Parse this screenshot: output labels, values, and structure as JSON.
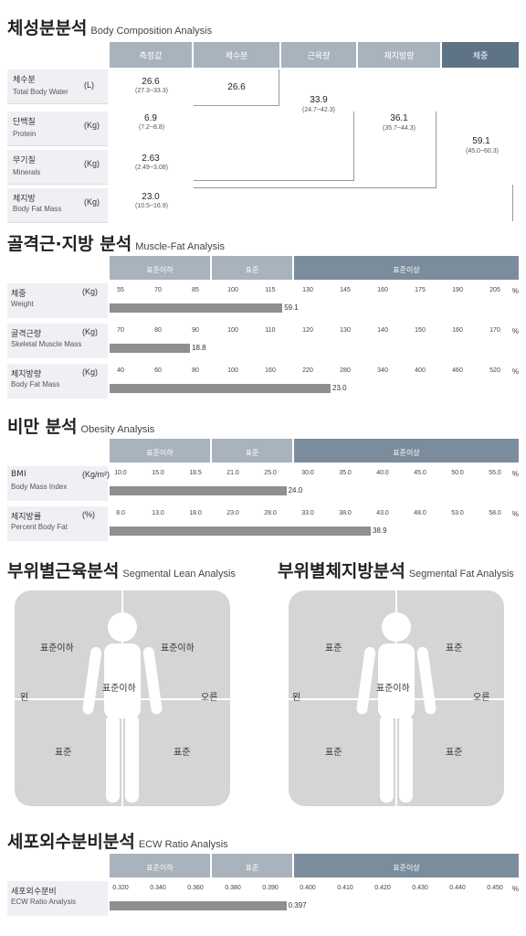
{
  "composition": {
    "title_kr": "체성분분석",
    "title_en": "Body Composition Analysis",
    "headers": [
      "측정값",
      "체수분",
      "근육량",
      "제지방량",
      "체중"
    ],
    "rows": [
      {
        "kr": "체수분",
        "en": "Total Body Water",
        "unit": "(L)",
        "value": "26.6",
        "range": "(27.3~33.3)"
      },
      {
        "kr": "단백질",
        "en": "Protein",
        "unit": "(Kg)",
        "value": "6.9",
        "range": "(7.2~8.8)"
      },
      {
        "kr": "무기질",
        "en": "Minerals",
        "unit": "(Kg)",
        "value": "2.63",
        "range": "(2.49~3.08)"
      },
      {
        "kr": "체지방",
        "en": "Body Fat Mass",
        "unit": "(Kg)",
        "value": "23.0",
        "range": "(10.5~16.9)"
      }
    ],
    "water_col": {
      "value": "26.6"
    },
    "muscle_col": {
      "value": "33.9",
      "range": "(24.7~42.3)"
    },
    "ffm_col": {
      "value": "36.1",
      "range": "(35.7~44.3)"
    },
    "weight_col": {
      "value": "59.1",
      "range": "(45.0~60.3)"
    }
  },
  "muscle_fat": {
    "title_kr": "골격근·지방 분석",
    "title_en": "Muscle-Fat Analysis",
    "bands": [
      "표준이하",
      "표준",
      "표준이상"
    ],
    "rows": [
      {
        "kr": "체중",
        "en": "Weight",
        "unit": "(Kg)",
        "ticks": [
          "55",
          "70",
          "85",
          "100",
          "115",
          "130",
          "145",
          "160",
          "175",
          "190",
          "205"
        ],
        "value": "59.1",
        "fraction": 0.43
      },
      {
        "kr": "골격근량",
        "en": "Skeletal Muscle Mass",
        "unit": "(Kg)",
        "ticks": [
          "70",
          "80",
          "90",
          "100",
          "110",
          "120",
          "130",
          "140",
          "150",
          "160",
          "170"
        ],
        "value": "18.8",
        "fraction": 0.2
      },
      {
        "kr": "체지방량",
        "en": "Body Fat Mass",
        "unit": "(Kg)",
        "ticks": [
          "40",
          "60",
          "80",
          "100",
          "160",
          "220",
          "280",
          "340",
          "400",
          "460",
          "520"
        ],
        "value": "23.0",
        "fraction": 0.55
      }
    ]
  },
  "obesity": {
    "title_kr": "비만 분석",
    "title_en": "Obesity Analysis",
    "bands": [
      "표준이하",
      "표준",
      "표준이상"
    ],
    "rows": [
      {
        "kr": "BMI",
        "en": "Body Mass Index",
        "unit": "(Kg/m²)",
        "ticks": [
          "10.0",
          "15.0",
          "18.5",
          "21.0",
          "25.0",
          "30.0",
          "35.0",
          "40.0",
          "45.0",
          "50.0",
          "55.0"
        ],
        "value": "24.0",
        "fraction": 0.44
      },
      {
        "kr": "체지방률",
        "en": "Percent Body Fat",
        "unit": "(%)",
        "ticks": [
          "8.0",
          "13.0",
          "18.0",
          "23.0",
          "28.0",
          "33.0",
          "38.0",
          "43.0",
          "48.0",
          "53.0",
          "58.0"
        ],
        "value": "38.9",
        "fraction": 0.65
      }
    ]
  },
  "segmental_lean": {
    "title_kr": "부위별근육분석",
    "title_en": "Segmental Lean Analysis",
    "left_arm": "표준이하",
    "right_arm": "표준이하",
    "trunk": "표준이하",
    "left_leg": "표준",
    "right_leg": "표준",
    "left": "왼",
    "right": "오른"
  },
  "segmental_fat": {
    "title_kr": "부위별체지방분석",
    "title_en": "Segmental Fat Analysis",
    "left_arm": "표준",
    "right_arm": "표준",
    "trunk": "표준이하",
    "left_leg": "표준",
    "right_leg": "표준",
    "left": "왼",
    "right": "오른"
  },
  "ecw": {
    "title_kr": "세포외수분비분석",
    "title_en": "ECW Ratio Analysis",
    "bands": [
      "표준이하",
      "표준",
      "표준이상"
    ],
    "row": {
      "kr": "세포외수분비",
      "en": "ECW Ratio Analysis",
      "ticks": [
        "0.320",
        "0.340",
        "0.360",
        "0.380",
        "0.390",
        "0.400",
        "0.410",
        "0.420",
        "0.430",
        "0.440",
        "0.450"
      ],
      "value": "0.397",
      "fraction": 0.44
    }
  }
}
